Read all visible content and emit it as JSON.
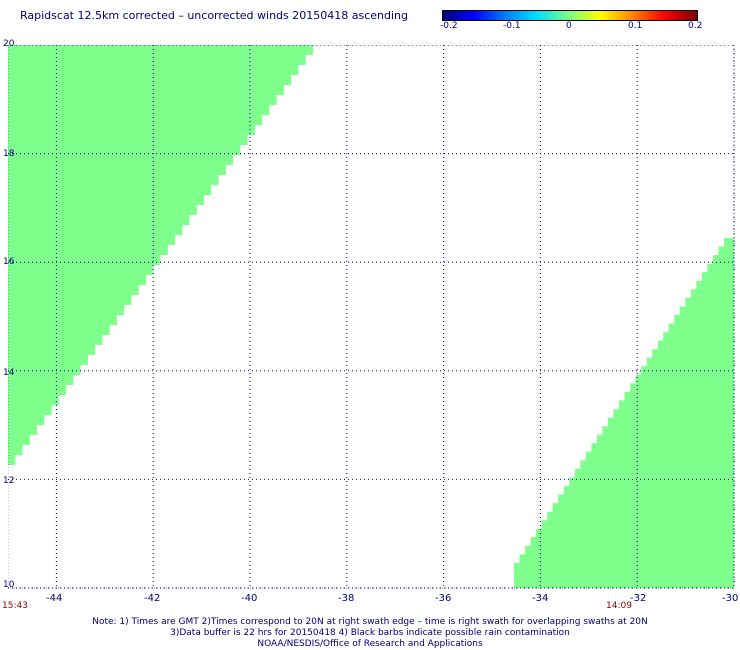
{
  "title": "Rapidscat 12.5km corrected – uncorrected winds 20150418 ascending",
  "colorbar": {
    "labels": [
      "-0.2",
      "-0.1",
      "0",
      "0.1",
      "0.2"
    ],
    "range": [
      -0.2,
      0.2
    ]
  },
  "map": {
    "lon_range": [
      -45,
      -30
    ],
    "lat_range": [
      10,
      20
    ],
    "lon_ticks": [
      "-44",
      "-42",
      "-40",
      "-38",
      "-36",
      "-34",
      "-32",
      "-30"
    ],
    "lat_ticks": [
      "20",
      "18",
      "16",
      "14",
      "12",
      "10"
    ],
    "swath_color": "#7fff8c",
    "grid_color": "#00007a",
    "swaths": [
      {
        "time": "15:43",
        "edge_time_position": "left"
      },
      {
        "time": "14:09",
        "edge_time_position": "right"
      }
    ]
  },
  "notes": [
    "Note: 1) Times are GMT 2)Times correspond to 20N at right swath edge – time is right swath for overlapping swaths at 20N",
    "3)Data buffer is 22 hrs for 20150418 4) Black barbs indicate possible rain contamination",
    "NOAA/NESDIS/Office of Research and Applications"
  ]
}
